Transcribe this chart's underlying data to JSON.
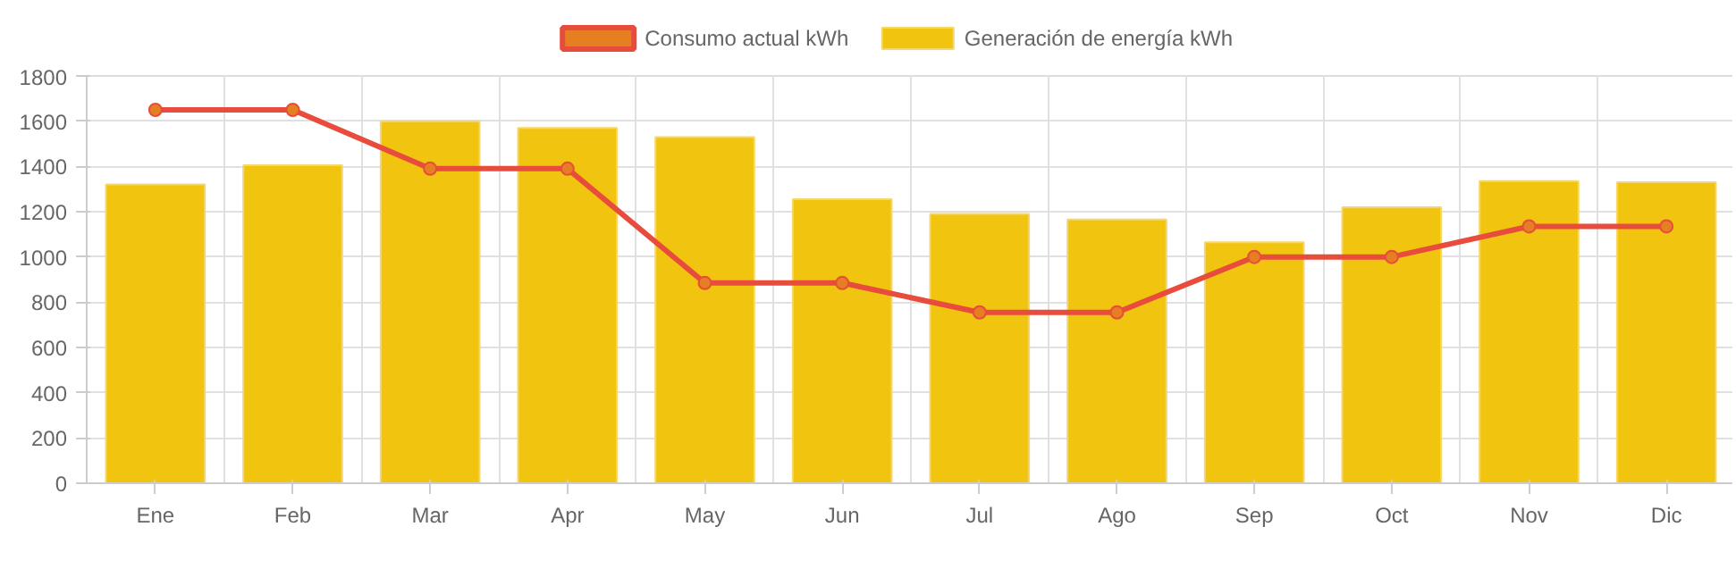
{
  "chart_data": {
    "type": "bar",
    "categories": [
      "Ene",
      "Feb",
      "Mar",
      "Apr",
      "May",
      "Jun",
      "Jul",
      "Ago",
      "Sep",
      "Oct",
      "Nov",
      "Dic"
    ],
    "series": [
      {
        "name": "Consumo actual kWh",
        "type": "line",
        "color": "#e74c3c",
        "marker": "circle",
        "values": [
          1650,
          1650,
          1390,
          1390,
          885,
          885,
          755,
          755,
          1000,
          1000,
          1135,
          1135
        ]
      },
      {
        "name": "Generación de energía kWh",
        "color": "#f1c40f",
        "values": [
          1320,
          1405,
          1600,
          1570,
          1530,
          1255,
          1190,
          1165,
          1065,
          1220,
          1335,
          1330
        ]
      }
    ],
    "ylim": [
      0,
      1800
    ],
    "yticks": [
      0,
      200,
      400,
      600,
      800,
      1000,
      1200,
      1400,
      1600,
      1800
    ],
    "grid": true,
    "legend": "top"
  }
}
